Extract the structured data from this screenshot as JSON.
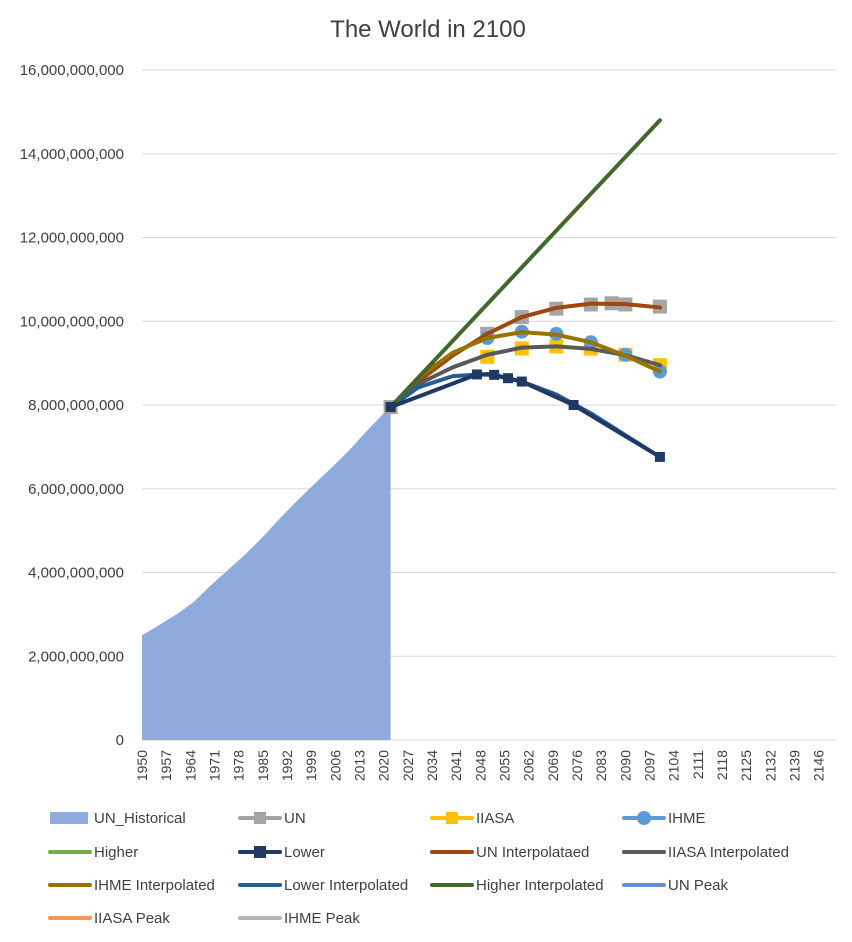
{
  "chart_data": {
    "type": "line",
    "title": "The World in 2100",
    "xlabel": "",
    "ylabel": "",
    "xlim": [
      1950,
      2151
    ],
    "ylim": [
      0,
      16000000000
    ],
    "y_ticks": [
      0,
      2000000000,
      4000000000,
      6000000000,
      8000000000,
      10000000000,
      12000000000,
      14000000000,
      16000000000
    ],
    "y_tick_labels": [
      "0",
      "2,000,000,000",
      "4,000,000,000",
      "6,000,000,000",
      "8,000,000,000",
      "10,000,000,000",
      "12,000,000,000",
      "14,000,000,000",
      "16,000,000,000"
    ],
    "x_tick_labels": [
      "1950",
      "1957",
      "1964",
      "1971",
      "1978",
      "1985",
      "1992",
      "1999",
      "2006",
      "2013",
      "2020",
      "2027",
      "2034",
      "2041",
      "2048",
      "2055",
      "2062",
      "2069",
      "2076",
      "2083",
      "2090",
      "2097",
      "2104",
      "2111",
      "2118",
      "2125",
      "2132",
      "2139",
      "2146"
    ],
    "grid": "horizontal",
    "legend_position": "bottom",
    "series": [
      {
        "name": "UN_Historical",
        "kind": "area",
        "color": "#8faadc",
        "points": [
          [
            1950,
            2500000000
          ],
          [
            1955,
            2750000000
          ],
          [
            1960,
            3000000000
          ],
          [
            1965,
            3300000000
          ],
          [
            1970,
            3700000000
          ],
          [
            1975,
            4070000000
          ],
          [
            1980,
            4440000000
          ],
          [
            1985,
            4850000000
          ],
          [
            1990,
            5300000000
          ],
          [
            1995,
            5720000000
          ],
          [
            2000,
            6120000000
          ],
          [
            2005,
            6510000000
          ],
          [
            2010,
            6920000000
          ],
          [
            2015,
            7370000000
          ],
          [
            2020,
            7800000000
          ],
          [
            2022,
            7950000000
          ]
        ]
      },
      {
        "name": "UN",
        "kind": "marker",
        "marker": "square",
        "color": "#a5a5a5",
        "points": [
          [
            2022,
            7950000000
          ],
          [
            2050,
            9700000000
          ],
          [
            2060,
            10100000000
          ],
          [
            2070,
            10300000000
          ],
          [
            2080,
            10400000000
          ],
          [
            2086,
            10430000000
          ],
          [
            2090,
            10400000000
          ],
          [
            2100,
            10350000000
          ]
        ]
      },
      {
        "name": "IIASA",
        "kind": "marker",
        "marker": "square",
        "color": "#ffc000",
        "points": [
          [
            2050,
            9150000000
          ],
          [
            2060,
            9350000000
          ],
          [
            2070,
            9400000000
          ],
          [
            2080,
            9350000000
          ],
          [
            2090,
            9200000000
          ],
          [
            2100,
            8950000000
          ]
        ]
      },
      {
        "name": "IHME",
        "kind": "marker",
        "marker": "circle",
        "color": "#5b9bd5",
        "points": [
          [
            2050,
            9600000000
          ],
          [
            2060,
            9750000000
          ],
          [
            2070,
            9700000000
          ],
          [
            2080,
            9500000000
          ],
          [
            2090,
            9200000000
          ],
          [
            2100,
            8800000000
          ]
        ]
      },
      {
        "name": "Higher",
        "kind": "legend-only",
        "color": "#70ad47",
        "points": []
      },
      {
        "name": "Lower",
        "kind": "line-marker",
        "marker": "square",
        "color": "#203864",
        "points": [
          [
            2022,
            7950000000
          ],
          [
            2047,
            8730000000
          ],
          [
            2052,
            8720000000
          ],
          [
            2056,
            8640000000
          ],
          [
            2060,
            8560000000
          ],
          [
            2075,
            8000000000
          ],
          [
            2100,
            6760000000
          ]
        ]
      },
      {
        "name": "UN Interpolataed",
        "kind": "line",
        "color": "#9e480e",
        "points": [
          [
            2022,
            7950000000
          ],
          [
            2030,
            8560000000
          ],
          [
            2040,
            9180000000
          ],
          [
            2050,
            9700000000
          ],
          [
            2060,
            10100000000
          ],
          [
            2070,
            10320000000
          ],
          [
            2080,
            10420000000
          ],
          [
            2090,
            10410000000
          ],
          [
            2100,
            10330000000
          ]
        ]
      },
      {
        "name": "IIASA Interpolated",
        "kind": "line",
        "color": "#595959",
        "points": [
          [
            2022,
            7950000000
          ],
          [
            2030,
            8500000000
          ],
          [
            2040,
            8900000000
          ],
          [
            2050,
            9200000000
          ],
          [
            2060,
            9370000000
          ],
          [
            2070,
            9400000000
          ],
          [
            2080,
            9340000000
          ],
          [
            2090,
            9190000000
          ],
          [
            2100,
            8950000000
          ]
        ]
      },
      {
        "name": "IHME Interpolated",
        "kind": "line",
        "color": "#997300",
        "points": [
          [
            2022,
            7950000000
          ],
          [
            2030,
            8650000000
          ],
          [
            2040,
            9250000000
          ],
          [
            2050,
            9600000000
          ],
          [
            2060,
            9740000000
          ],
          [
            2070,
            9680000000
          ],
          [
            2080,
            9500000000
          ],
          [
            2090,
            9180000000
          ],
          [
            2100,
            8800000000
          ]
        ]
      },
      {
        "name": "Lower Interpolated",
        "kind": "line",
        "color": "#255e91",
        "points": [
          [
            2022,
            7950000000
          ],
          [
            2030,
            8420000000
          ],
          [
            2040,
            8690000000
          ],
          [
            2050,
            8740000000
          ],
          [
            2060,
            8560000000
          ],
          [
            2070,
            8250000000
          ],
          [
            2080,
            7800000000
          ],
          [
            2090,
            7280000000
          ],
          [
            2100,
            6760000000
          ]
        ]
      },
      {
        "name": "Higher Interpolated",
        "kind": "line",
        "color": "#43682b",
        "points": [
          [
            2022,
            7950000000
          ],
          [
            2100,
            14800000000
          ]
        ]
      },
      {
        "name": "UN Peak",
        "kind": "legend-only",
        "color": "#698ed0",
        "points": []
      },
      {
        "name": "IIASA Peak",
        "kind": "legend-only",
        "color": "#f1975a",
        "points": []
      },
      {
        "name": "IHME Peak",
        "kind": "legend-only",
        "color": "#b7b7b7",
        "points": []
      }
    ]
  }
}
